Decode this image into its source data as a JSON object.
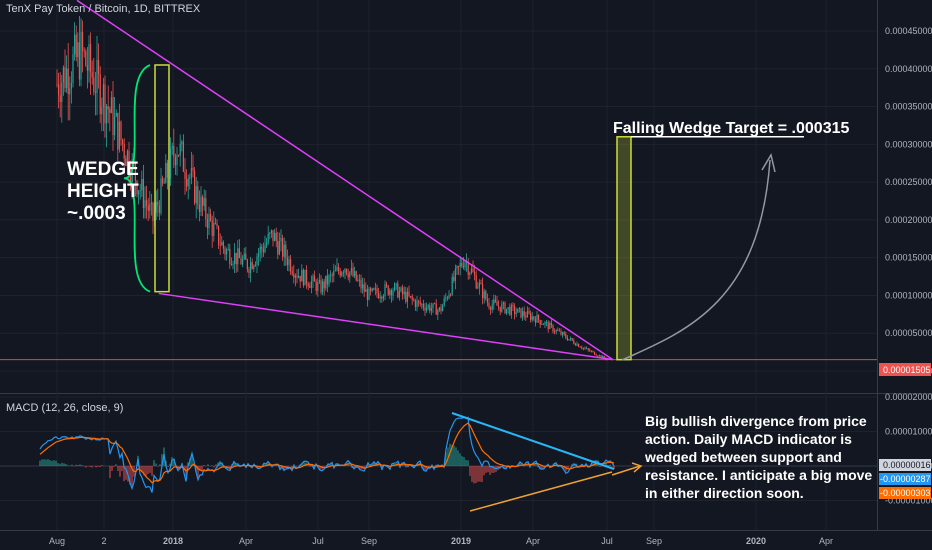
{
  "title": "TenX Pay Token / Bitcoin, 1D, BITTREX",
  "macd_label": "MACD (12, 26, close, 9)",
  "annotations": {
    "target": "Falling Wedge Target = .000315",
    "wedge_line1": "WEDGE",
    "wedge_line2": "HEIGHT",
    "wedge_line3": "~.0003",
    "div_lines": [
      "Big bullish divergence from price",
      "action. Daily MACD indicator is",
      "wedged between support and",
      "resistance. I anticipate a big move",
      "in either direction soon."
    ]
  },
  "colors": {
    "background": "#131722",
    "up": "#26a69a",
    "down": "#ef5350",
    "wedge_line": "#e040fb",
    "box": "#cddc39",
    "brace": "#00e676",
    "macd": "#2196f3",
    "signal": "#ff6d00",
    "support": "#f0a030",
    "resistance": "#29b6f6"
  },
  "chart_data": [
    {
      "type": "candlestick",
      "title": "TenX Pay Token / Bitcoin, 1D, BITTREX",
      "x_ticks": [
        "Aug",
        "2",
        "2018",
        "Apr",
        "Jul",
        "Sep",
        "2019",
        "Apr",
        "Jul",
        "Sep",
        "2020",
        "Apr"
      ],
      "y_ticks": [
        "0.00045000",
        "0.00040000",
        "0.00035000",
        "0.00030000",
        "0.00025000",
        "0.00020000",
        "0.00015000",
        "0.00010000",
        "0.00005000",
        "-0.00000000"
      ],
      "ylim": [
        -3e-06,
        0.00048
      ],
      "last_price": "0.00001505",
      "approx_close_path": [
        [
          "Aug 2017",
          0.00038
        ],
        [
          "Sep 2017",
          0.00042
        ],
        [
          "Oct 2017",
          0.00036
        ],
        [
          "Nov 2017",
          0.00028
        ],
        [
          "Dec 2017",
          0.0002
        ],
        [
          "Jan 2018",
          0.0003
        ],
        [
          "Feb 2018",
          0.00022
        ],
        [
          "Mar 2018",
          0.00016
        ],
        [
          "Apr 2018",
          0.00014
        ],
        [
          "May 2018",
          0.00018
        ],
        [
          "Jun 2018",
          0.00013
        ],
        [
          "Jul 2018",
          0.00011
        ],
        [
          "Aug 2018",
          0.00014
        ],
        [
          "Sep 2018",
          0.0001
        ],
        [
          "Oct 2018",
          0.00011
        ],
        [
          "Nov 2018",
          9e-05
        ],
        [
          "Dec 2018",
          8e-05
        ],
        [
          "Jan 2019",
          0.00015
        ],
        [
          "Feb 2019",
          9e-05
        ],
        [
          "Mar 2019",
          8e-05
        ],
        [
          "Apr 2019",
          7e-05
        ],
        [
          "May 2019",
          5e-05
        ],
        [
          "Jun 2019",
          3e-05
        ],
        [
          "Jul 2019",
          1.5e-05
        ]
      ],
      "wedge_upper": [
        [
          "Aug 2017",
          0.00048
        ],
        [
          "Jul 2019",
          1.5e-05
        ]
      ],
      "wedge_lower": [
        [
          "Jan 2018",
          0.0001
        ],
        [
          "Jul 2019",
          1.5e-05
        ]
      ],
      "wedge_height_box": {
        "top": 0.000405,
        "bottom": 0.000105
      },
      "target_box": {
        "top": 0.00031,
        "bottom": 1.5e-05
      }
    },
    {
      "type": "macd",
      "title": "MACD (12, 26, close, 9)",
      "y_ticks": [
        "0.00002000",
        "0.00001000",
        "0.00000000",
        "-0.00001000"
      ],
      "ylim": [
        -1.4e-05,
        2.1e-05
      ],
      "last_values": {
        "histogram": "0.00000016",
        "macd": "-0.00000287",
        "signal": "-0.00000303"
      }
    }
  ]
}
